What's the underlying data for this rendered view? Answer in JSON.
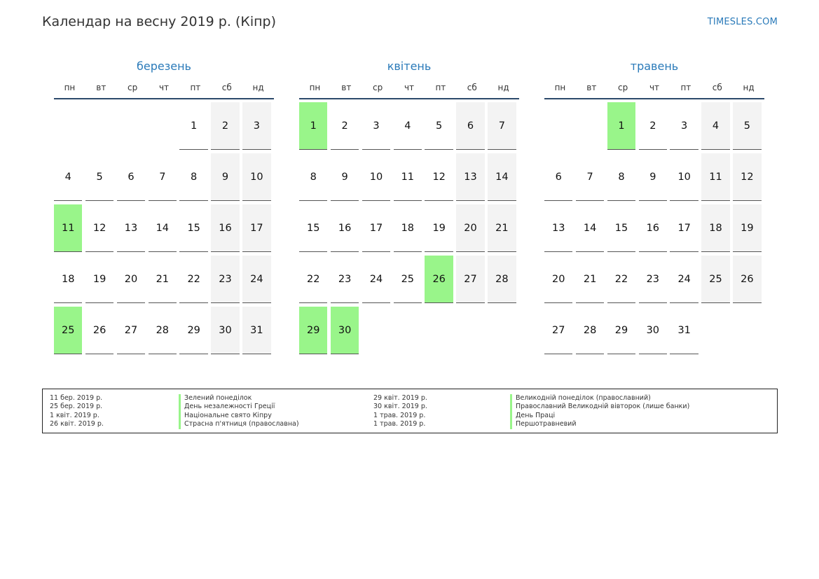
{
  "title": "Календар на весну 2019 р. (Кіпр)",
  "site": "TIMESLES.COM",
  "colors": {
    "accent": "#2a7ab9",
    "holiday": "#99f58a",
    "weekend": "#f3f3f3"
  },
  "weekdays": [
    "пн",
    "вт",
    "ср",
    "чт",
    "пт",
    "сб",
    "нд"
  ],
  "months": [
    {
      "name": "березень",
      "weeks": [
        [
          null,
          null,
          null,
          null,
          "1",
          "2",
          "3"
        ],
        [
          "4",
          "5",
          "6",
          "7",
          "8",
          "9",
          "10"
        ],
        [
          "11",
          "12",
          "13",
          "14",
          "15",
          "16",
          "17"
        ],
        [
          "18",
          "19",
          "20",
          "21",
          "22",
          "23",
          "24"
        ],
        [
          "25",
          "26",
          "27",
          "28",
          "29",
          "30",
          "31"
        ]
      ],
      "holidays": [
        "11",
        "25"
      ]
    },
    {
      "name": "квітень",
      "weeks": [
        [
          "1",
          "2",
          "3",
          "4",
          "5",
          "6",
          "7"
        ],
        [
          "8",
          "9",
          "10",
          "11",
          "12",
          "13",
          "14"
        ],
        [
          "15",
          "16",
          "17",
          "18",
          "19",
          "20",
          "21"
        ],
        [
          "22",
          "23",
          "24",
          "25",
          "26",
          "27",
          "28"
        ],
        [
          "29",
          "30",
          null,
          null,
          null,
          null,
          null
        ]
      ],
      "holidays": [
        "1",
        "26",
        "29",
        "30"
      ]
    },
    {
      "name": "травень",
      "weeks": [
        [
          null,
          null,
          "1",
          "2",
          "3",
          "4",
          "5"
        ],
        [
          "6",
          "7",
          "8",
          "9",
          "10",
          "11",
          "12"
        ],
        [
          "13",
          "14",
          "15",
          "16",
          "17",
          "18",
          "19"
        ],
        [
          "20",
          "21",
          "22",
          "23",
          "24",
          "25",
          "26"
        ],
        [
          "27",
          "28",
          "29",
          "30",
          "31",
          null,
          null
        ]
      ],
      "holidays": [
        "1"
      ]
    }
  ],
  "legend": {
    "left": [
      {
        "date": "11 бер. 2019 р.",
        "name": "Зелений понеділок"
      },
      {
        "date": "25 бер. 2019 р.",
        "name": "День незалежності Греції"
      },
      {
        "date": "1 квіт. 2019 р.",
        "name": "Національне свято Кіпру"
      },
      {
        "date": "26 квіт. 2019 р.",
        "name": "Страсна п'ятниця (православна)"
      }
    ],
    "right": [
      {
        "date": "29 квіт. 2019 р.",
        "name": "Великодній понеділок (православний)"
      },
      {
        "date": "30 квіт. 2019 р.",
        "name": "Православний Великодній вівторок (лише банки)"
      },
      {
        "date": "1 трав. 2019 р.",
        "name": "День Праці"
      },
      {
        "date": "1 трав. 2019 р.",
        "name": "Першотравневий"
      }
    ]
  }
}
